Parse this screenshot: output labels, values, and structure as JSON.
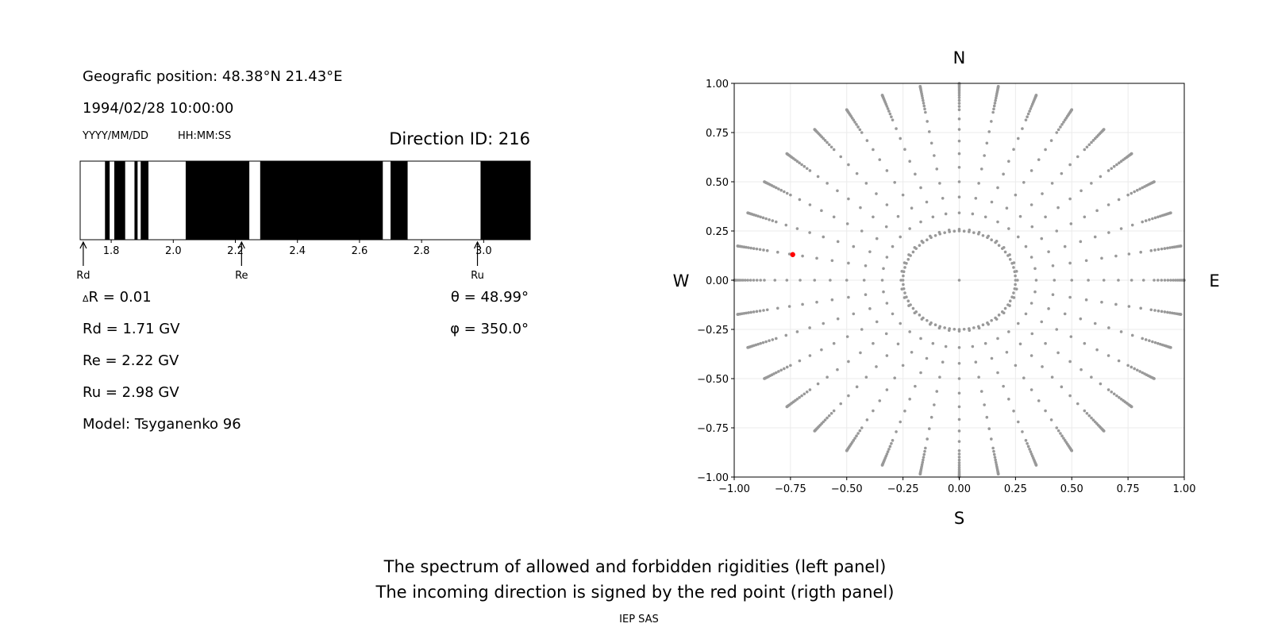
{
  "left_panel": {
    "position": "Geografic position: 48.38°N 21.43°E",
    "datetime": "1994/02/28 10:00:00",
    "date_format": "YYYY/MM/DD",
    "time_format": "HH:MM:SS",
    "direction": "Direction ID: 216",
    "delta_r": "R = 0.01",
    "delta_symbol": "Δ",
    "rd": "Rd = 1.71 GV",
    "re": "Re = 2.22 GV",
    "ru": "Ru = 2.98 GV",
    "model": "Model: Tsyganenko 96",
    "theta": "θ = 48.99°",
    "phi": "φ = 350.0°"
  },
  "footer": {
    "caption_line1": "The spectrum of allowed and forbidden rigidities (left panel)",
    "caption_line2": "The incoming direction is signed by the red point (rigth panel)",
    "credit": "IEP SAS"
  },
  "chart_data": [
    {
      "type": "bar",
      "description": "rigidity spectrum; black = forbidden, white = allowed",
      "xlim": [
        1.7,
        3.15
      ],
      "ticks": [
        "1.8",
        "2.0",
        "2.2",
        "2.4",
        "2.6",
        "2.8",
        "3.0"
      ],
      "tick_values": [
        1.8,
        2.0,
        2.2,
        2.4,
        2.6,
        2.8,
        3.0
      ],
      "forbidden_bands": [
        [
          1.78,
          1.795
        ],
        [
          1.81,
          1.845
        ],
        [
          1.875,
          1.885
        ],
        [
          1.895,
          1.92
        ],
        [
          2.04,
          2.245
        ],
        [
          2.28,
          2.675
        ],
        [
          2.7,
          2.755
        ],
        [
          2.99,
          3.15
        ]
      ],
      "markers": [
        {
          "label": "Rd",
          "value": 1.71
        },
        {
          "label": "Re",
          "value": 2.22
        },
        {
          "label": "Ru",
          "value": 2.98
        }
      ],
      "colors": {
        "forbidden": "#000000",
        "allowed": "#ffffff"
      }
    },
    {
      "type": "scatter",
      "xlim": [
        -1.0,
        1.0
      ],
      "ylim": [
        -1.0,
        1.0
      ],
      "x_ticks": [
        "−1.00",
        "−0.75",
        "−0.50",
        "−0.25",
        "0.00",
        "0.25",
        "0.50",
        "0.75",
        "1.00"
      ],
      "y_ticks": [
        "1.00",
        "0.75",
        "0.50",
        "0.25",
        "0.00",
        "−0.25",
        "−0.50",
        "−0.75",
        "−1.00"
      ],
      "tick_values": [
        -1.0,
        -0.75,
        -0.5,
        -0.25,
        0.0,
        0.25,
        0.5,
        0.75,
        1.0
      ],
      "grid": true,
      "compass": {
        "north": "N",
        "south": "S",
        "east": "E",
        "west": "W"
      },
      "grid_points": {
        "azimuth_step_deg": 10,
        "inner_ring_radius": 0.25,
        "inner_ring_azimuth_step_deg": 5,
        "center": [
          0.0,
          0.0
        ],
        "zenith_angles_deg": [
          15,
          20,
          25,
          30,
          35,
          40,
          45,
          50,
          55,
          60,
          62,
          64,
          66,
          68,
          70,
          72,
          74,
          76,
          78,
          80,
          82,
          84,
          86,
          88,
          90
        ],
        "color": "#999999"
      },
      "highlight": {
        "x": -0.74,
        "y": 0.13,
        "color": "#ff0000"
      }
    }
  ]
}
